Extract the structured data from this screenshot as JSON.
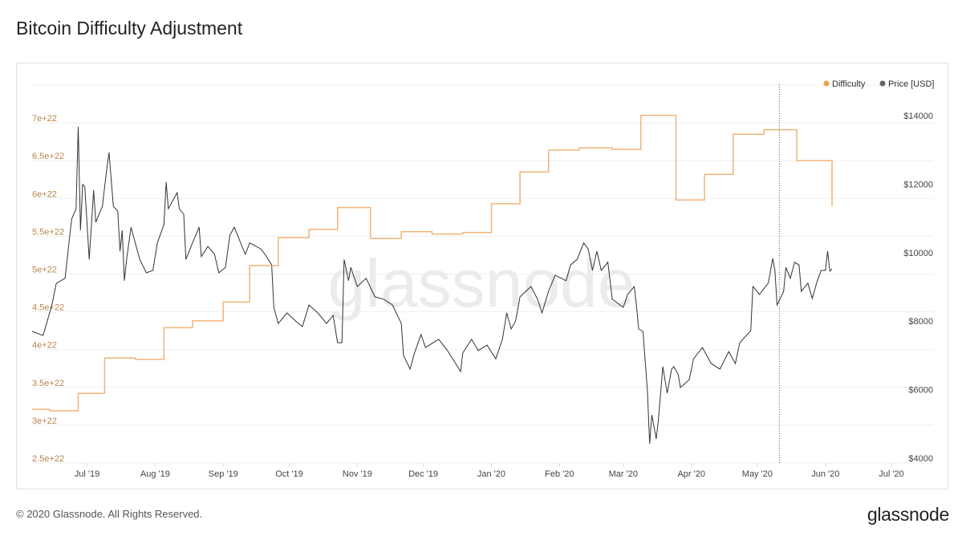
{
  "title": "Bitcoin Difficulty Adjustment",
  "footer": "© 2020 Glassnode. All Rights Reserved.",
  "logo": "glassnode",
  "watermark": "glassnode",
  "chart_data": {
    "type": "line",
    "title": "Bitcoin Difficulty Adjustment",
    "xlim": [
      "2019-06-06",
      "2020-07-20"
    ],
    "x_ticks": [
      {
        "date": "2019-07-01",
        "label": "Jul '19"
      },
      {
        "date": "2019-08-01",
        "label": "Aug '19"
      },
      {
        "date": "2019-09-01",
        "label": "Sep '19"
      },
      {
        "date": "2019-10-01",
        "label": "Oct '19"
      },
      {
        "date": "2019-11-01",
        "label": "Nov '19"
      },
      {
        "date": "2019-12-01",
        "label": "Dec '19"
      },
      {
        "date": "2020-01-01",
        "label": "Jan '20"
      },
      {
        "date": "2020-02-01",
        "label": "Feb '20"
      },
      {
        "date": "2020-03-01",
        "label": "Mar '20"
      },
      {
        "date": "2020-04-01",
        "label": "Apr '20"
      },
      {
        "date": "2020-05-01",
        "label": "May '20"
      },
      {
        "date": "2020-06-01",
        "label": "Jun '20"
      },
      {
        "date": "2020-07-01",
        "label": "Jul '20"
      }
    ],
    "left_axis": {
      "ylim": [
        2.5e+22,
        7.5e+22
      ],
      "ticks": [
        {
          "value": 2.5e+22,
          "label": "2.5e+22"
        },
        {
          "value": 3e+22,
          "label": "3e+22"
        },
        {
          "value": 3.5e+22,
          "label": "3.5e+22"
        },
        {
          "value": 4e+22,
          "label": "4e+22"
        },
        {
          "value": 4.5e+22,
          "label": "4.5e+22"
        },
        {
          "value": 5e+22,
          "label": "5e+22"
        },
        {
          "value": 5.5e+22,
          "label": "5.5e+22"
        },
        {
          "value": 6e+22,
          "label": "6e+22"
        },
        {
          "value": 6.5e+22,
          "label": "6.5e+22"
        },
        {
          "value": 7e+22,
          "label": "7e+22"
        }
      ]
    },
    "right_axis": {
      "ticks": [
        {
          "value": 4000,
          "label": "$4000"
        },
        {
          "value": 6000,
          "label": "$6000"
        },
        {
          "value": 8000,
          "label": "$8000"
        },
        {
          "value": 10000,
          "label": "$10000"
        },
        {
          "value": 12000,
          "label": "$12000"
        },
        {
          "value": 14000,
          "label": "$14000"
        }
      ]
    },
    "grid": true,
    "legend_position": "top-right",
    "marker_line_date": "2020-05-11",
    "series": [
      {
        "name": "Difficulty",
        "axis": "left",
        "color": "#f0b479",
        "step": true,
        "points": [
          [
            "2019-06-06",
            3.21e+22
          ],
          [
            "2019-06-14",
            3.19e+22
          ],
          [
            "2019-06-27",
            3.42e+22
          ],
          [
            "2019-07-09",
            3.89e+22
          ],
          [
            "2019-07-23",
            3.87e+22
          ],
          [
            "2019-08-05",
            4.29e+22
          ],
          [
            "2019-08-18",
            4.38e+22
          ],
          [
            "2019-09-01",
            4.63e+22
          ],
          [
            "2019-09-13",
            5.11e+22
          ],
          [
            "2019-09-26",
            5.48e+22
          ],
          [
            "2019-10-10",
            5.59e+22
          ],
          [
            "2019-10-23",
            5.88e+22
          ],
          [
            "2019-11-07",
            5.47e+22
          ],
          [
            "2019-11-21",
            5.56e+22
          ],
          [
            "2019-12-05",
            5.53e+22
          ],
          [
            "2019-12-19",
            5.55e+22
          ],
          [
            "2020-01-01",
            5.93e+22
          ],
          [
            "2020-01-14",
            6.35e+22
          ],
          [
            "2020-01-27",
            6.64e+22
          ],
          [
            "2020-02-10",
            6.67e+22
          ],
          [
            "2020-02-25",
            6.65e+22
          ],
          [
            "2020-03-09",
            7.1e+22
          ],
          [
            "2020-03-25",
            5.98e+22
          ],
          [
            "2020-04-07",
            6.32e+22
          ],
          [
            "2020-04-20",
            6.85e+22
          ],
          [
            "2020-05-04",
            6.91e+22
          ],
          [
            "2020-05-19",
            6.5e+22
          ],
          [
            "2020-06-04",
            5.9e+22
          ]
        ]
      },
      {
        "name": "Price [USD]",
        "axis": "right",
        "color": "#333333",
        "points": [
          [
            "2019-06-06",
            7700
          ],
          [
            "2019-06-11",
            7580
          ],
          [
            "2019-06-15",
            8470
          ],
          [
            "2019-06-17",
            9100
          ],
          [
            "2019-06-21",
            9250
          ],
          [
            "2019-06-23",
            10420
          ],
          [
            "2019-06-24",
            10980
          ],
          [
            "2019-06-26",
            11280
          ],
          [
            "2019-06-27",
            13670
          ],
          [
            "2019-06-28",
            10650
          ],
          [
            "2019-06-29",
            11990
          ],
          [
            "2019-06-30",
            11920
          ],
          [
            "2019-07-02",
            9800
          ],
          [
            "2019-07-04",
            11820
          ],
          [
            "2019-07-05",
            10890
          ],
          [
            "2019-07-08",
            11350
          ],
          [
            "2019-07-10",
            12450
          ],
          [
            "2019-07-11",
            12920
          ],
          [
            "2019-07-13",
            11350
          ],
          [
            "2019-07-15",
            11210
          ],
          [
            "2019-07-16",
            10040
          ],
          [
            "2019-07-17",
            10650
          ],
          [
            "2019-07-18",
            9180
          ],
          [
            "2019-07-19",
            9800
          ],
          [
            "2019-07-21",
            10740
          ],
          [
            "2019-07-25",
            9800
          ],
          [
            "2019-07-28",
            9410
          ],
          [
            "2019-07-31",
            9480
          ],
          [
            "2019-08-02",
            10280
          ],
          [
            "2019-08-05",
            10820
          ],
          [
            "2019-08-06",
            12060
          ],
          [
            "2019-08-07",
            11280
          ],
          [
            "2019-08-11",
            11750
          ],
          [
            "2019-08-12",
            11280
          ],
          [
            "2019-08-14",
            11120
          ],
          [
            "2019-08-15",
            9800
          ],
          [
            "2019-08-18",
            10280
          ],
          [
            "2019-08-21",
            10740
          ],
          [
            "2019-08-22",
            9880
          ],
          [
            "2019-08-25",
            10180
          ],
          [
            "2019-08-28",
            9950
          ],
          [
            "2019-08-30",
            9410
          ],
          [
            "2019-09-02",
            9570
          ],
          [
            "2019-09-04",
            10510
          ],
          [
            "2019-09-06",
            10740
          ],
          [
            "2019-09-11",
            9950
          ],
          [
            "2019-09-13",
            10280
          ],
          [
            "2019-09-18",
            10110
          ],
          [
            "2019-09-20",
            9950
          ],
          [
            "2019-09-23",
            9640
          ],
          [
            "2019-09-24",
            8400
          ],
          [
            "2019-09-26",
            7930
          ],
          [
            "2019-09-30",
            8240
          ],
          [
            "2019-10-04",
            8000
          ],
          [
            "2019-10-07",
            7840
          ],
          [
            "2019-10-10",
            8470
          ],
          [
            "2019-10-14",
            8240
          ],
          [
            "2019-10-18",
            7930
          ],
          [
            "2019-10-21",
            8170
          ],
          [
            "2019-10-23",
            7370
          ],
          [
            "2019-10-25",
            7370
          ],
          [
            "2019-10-26",
            9800
          ],
          [
            "2019-10-27",
            9480
          ],
          [
            "2019-10-28",
            9180
          ],
          [
            "2019-10-29",
            9570
          ],
          [
            "2019-11-01",
            9010
          ],
          [
            "2019-11-05",
            9250
          ],
          [
            "2019-11-09",
            8710
          ],
          [
            "2019-11-13",
            8640
          ],
          [
            "2019-11-17",
            8470
          ],
          [
            "2019-11-21",
            7930
          ],
          [
            "2019-11-22",
            7000
          ],
          [
            "2019-11-25",
            6600
          ],
          [
            "2019-11-27",
            7070
          ],
          [
            "2019-11-30",
            7610
          ],
          [
            "2019-12-02",
            7230
          ],
          [
            "2019-12-08",
            7470
          ],
          [
            "2019-12-12",
            7140
          ],
          [
            "2019-12-18",
            6530
          ],
          [
            "2019-12-19",
            7070
          ],
          [
            "2019-12-23",
            7470
          ],
          [
            "2019-12-26",
            7140
          ],
          [
            "2019-12-30",
            7300
          ],
          [
            "2020-01-03",
            6900
          ],
          [
            "2020-01-06",
            7470
          ],
          [
            "2020-01-08",
            8240
          ],
          [
            "2020-01-10",
            7770
          ],
          [
            "2020-01-12",
            8000
          ],
          [
            "2020-01-14",
            8710
          ],
          [
            "2020-01-19",
            9010
          ],
          [
            "2020-01-22",
            8640
          ],
          [
            "2020-01-24",
            8240
          ],
          [
            "2020-01-27",
            8870
          ],
          [
            "2020-01-30",
            9340
          ],
          [
            "2020-02-04",
            9180
          ],
          [
            "2020-02-06",
            9640
          ],
          [
            "2020-02-09",
            9800
          ],
          [
            "2020-02-12",
            10280
          ],
          [
            "2020-02-14",
            10110
          ],
          [
            "2020-02-16",
            9480
          ],
          [
            "2020-02-18",
            10040
          ],
          [
            "2020-02-20",
            9480
          ],
          [
            "2020-02-23",
            9720
          ],
          [
            "2020-02-25",
            8640
          ],
          [
            "2020-03-01",
            8400
          ],
          [
            "2020-03-03",
            8780
          ],
          [
            "2020-03-06",
            9010
          ],
          [
            "2020-03-07",
            8470
          ],
          [
            "2020-03-08",
            7770
          ],
          [
            "2020-03-10",
            7700
          ],
          [
            "2020-03-12",
            5970
          ],
          [
            "2020-03-13",
            4420
          ],
          [
            "2020-03-14",
            5260
          ],
          [
            "2020-03-16",
            4560
          ],
          [
            "2020-03-17",
            5120
          ],
          [
            "2020-03-19",
            6670
          ],
          [
            "2020-03-20",
            6290
          ],
          [
            "2020-03-21",
            5900
          ],
          [
            "2020-03-23",
            6600
          ],
          [
            "2020-03-24",
            6670
          ],
          [
            "2020-03-26",
            6440
          ],
          [
            "2020-03-27",
            6060
          ],
          [
            "2020-03-31",
            6290
          ],
          [
            "2020-04-02",
            6900
          ],
          [
            "2020-04-06",
            7230
          ],
          [
            "2020-04-10",
            6760
          ],
          [
            "2020-04-14",
            6600
          ],
          [
            "2020-04-18",
            7110
          ],
          [
            "2020-04-21",
            6760
          ],
          [
            "2020-04-23",
            7370
          ],
          [
            "2020-04-28",
            7720
          ],
          [
            "2020-04-29",
            9010
          ],
          [
            "2020-05-02",
            8780
          ],
          [
            "2020-05-06",
            9110
          ],
          [
            "2020-05-08",
            9830
          ],
          [
            "2020-05-09",
            9480
          ],
          [
            "2020-05-10",
            8470
          ],
          [
            "2020-05-13",
            8870
          ],
          [
            "2020-05-14",
            9570
          ],
          [
            "2020-05-16",
            9250
          ],
          [
            "2020-05-18",
            9720
          ],
          [
            "2020-05-20",
            9640
          ],
          [
            "2020-05-21",
            8870
          ],
          [
            "2020-05-24",
            9110
          ],
          [
            "2020-05-26",
            8660
          ],
          [
            "2020-05-28",
            9110
          ],
          [
            "2020-05-30",
            9480
          ],
          [
            "2020-06-01",
            9480
          ],
          [
            "2020-06-02",
            10040
          ],
          [
            "2020-06-03",
            9460
          ],
          [
            "2020-06-04",
            9530
          ]
        ]
      }
    ]
  }
}
